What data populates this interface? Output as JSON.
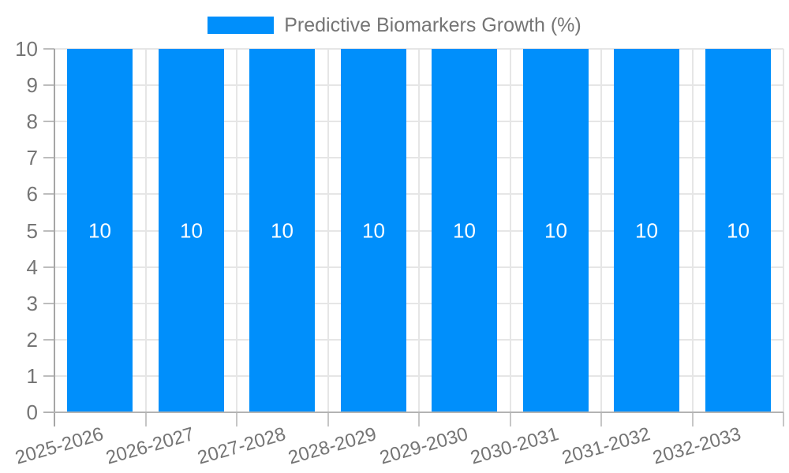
{
  "legend": {
    "label": "Predictive Biomarkers Growth (%)",
    "swatch_color": "#008FFB"
  },
  "chart_data": {
    "type": "bar",
    "title": "Predictive Biomarkers Growth (%)",
    "categories": [
      "2025-2026",
      "2026-2027",
      "2027-2028",
      "2028-2029",
      "2029-2030",
      "2030-2031",
      "2031-2032",
      "2032-2033"
    ],
    "series": [
      {
        "name": "Predictive Biomarkers Growth (%)",
        "values": [
          10,
          10,
          10,
          10,
          10,
          10,
          10,
          10
        ]
      }
    ],
    "bar_labels": [
      "10",
      "10",
      "10",
      "10",
      "10",
      "10",
      "10",
      "10"
    ],
    "xlabel": "",
    "ylabel": "",
    "ylim": [
      0,
      10
    ],
    "yticks": [
      0,
      1,
      2,
      3,
      4,
      5,
      6,
      7,
      8,
      9,
      10
    ],
    "grid": true,
    "legend_position": "top",
    "colors": {
      "bar": "#008FFB",
      "bar_label": "#ffffff",
      "axis_text": "#757575",
      "gridline": "#e6e6e6",
      "axis_line": "#a6a6a6",
      "baseline": "#b3b3b3"
    }
  }
}
